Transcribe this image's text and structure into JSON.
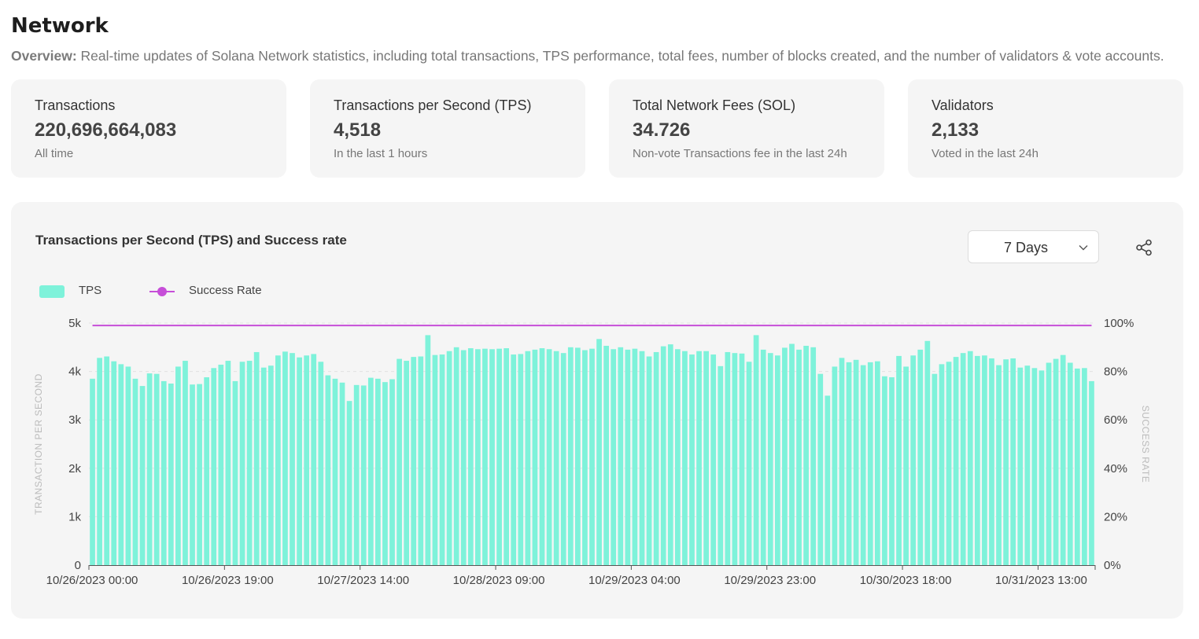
{
  "page": {
    "title": "Network",
    "overview_label": "Overview:",
    "overview_text": " Real-time updates of Solana Network statistics, including total transactions, TPS performance, total fees, number of blocks created, and the number of validators & vote accounts."
  },
  "stats": [
    {
      "label": "Transactions",
      "value": "220,696,664,083",
      "sub": "All time"
    },
    {
      "label": "Transactions per Second (TPS)",
      "value": "4,518",
      "sub": "In the last 1 hours"
    },
    {
      "label": "Total Network Fees (SOL)",
      "value": "34.726",
      "sub": "Non-vote Transactions fee in the last 24h"
    },
    {
      "label": "Validators",
      "value": "2,133",
      "sub": "Voted in the last 24h"
    }
  ],
  "chart_card": {
    "title": "Transactions per Second (TPS) and Success rate",
    "range_select": {
      "selected": "7 Days"
    },
    "share_icon": "share-icon"
  },
  "chart_data": {
    "type": "bar",
    "title": "Transactions per Second (TPS) and Success rate",
    "ylabel": "TRANSACTION PER SECOND",
    "y2label": "SUCCESS RATE",
    "ylim": [
      0,
      5000
    ],
    "y2lim": [
      0,
      100
    ],
    "yticks": [
      "0",
      "1k",
      "2k",
      "3k",
      "4k",
      "5k"
    ],
    "y2ticks": [
      "0%",
      "20%",
      "40%",
      "60%",
      "80%",
      "100%"
    ],
    "xticks": [
      "10/26/2023 00:00",
      "10/26/2023 19:00",
      "10/27/2023 14:00",
      "10/28/2023 09:00",
      "10/29/2023 04:00",
      "10/29/2023 23:00",
      "10/30/2023 18:00",
      "10/31/2023 13:00"
    ],
    "bars_per_xtick": 19,
    "legend_position": "top-left",
    "grid": true,
    "colors": {
      "tps": "#7ef2da",
      "success": "#c64ed8"
    },
    "series": [
      {
        "name": "TPS",
        "axis": "left",
        "type": "bar",
        "values": [
          3850,
          4280,
          4310,
          4210,
          4150,
          4100,
          3850,
          3700,
          3960,
          3950,
          3800,
          3750,
          4100,
          4220,
          3730,
          3740,
          3880,
          4070,
          4140,
          4220,
          3800,
          4200,
          4220,
          4400,
          4080,
          4120,
          4330,
          4410,
          4380,
          4290,
          4330,
          4360,
          4200,
          3920,
          3850,
          3770,
          3390,
          3720,
          3710,
          3870,
          3850,
          3780,
          3840,
          4260,
          4220,
          4300,
          4310,
          4750,
          4340,
          4350,
          4420,
          4500,
          4440,
          4480,
          4460,
          4470,
          4460,
          4470,
          4480,
          4350,
          4360,
          4420,
          4450,
          4480,
          4460,
          4420,
          4380,
          4500,
          4490,
          4440,
          4470,
          4670,
          4530,
          4460,
          4500,
          4450,
          4470,
          4420,
          4310,
          4400,
          4520,
          4560,
          4460,
          4420,
          4350,
          4420,
          4420,
          4350,
          4110,
          4400,
          4380,
          4370,
          4200,
          4750,
          4450,
          4380,
          4330,
          4490,
          4570,
          4450,
          4530,
          4500,
          3950,
          3500,
          4100,
          4280,
          4190,
          4240,
          4130,
          4190,
          4210,
          3900,
          3880,
          4320,
          4100,
          4330,
          4450,
          4630,
          3950,
          4150,
          4200,
          4300,
          4380,
          4420,
          4320,
          4330,
          4270,
          4130,
          4250,
          4270,
          4080,
          4120,
          4070,
          4020,
          4180,
          4260,
          4340,
          4180,
          4060,
          4070,
          3800
        ]
      },
      {
        "name": "Success Rate",
        "axis": "right",
        "type": "line",
        "values": [
          99
        ]
      }
    ]
  }
}
